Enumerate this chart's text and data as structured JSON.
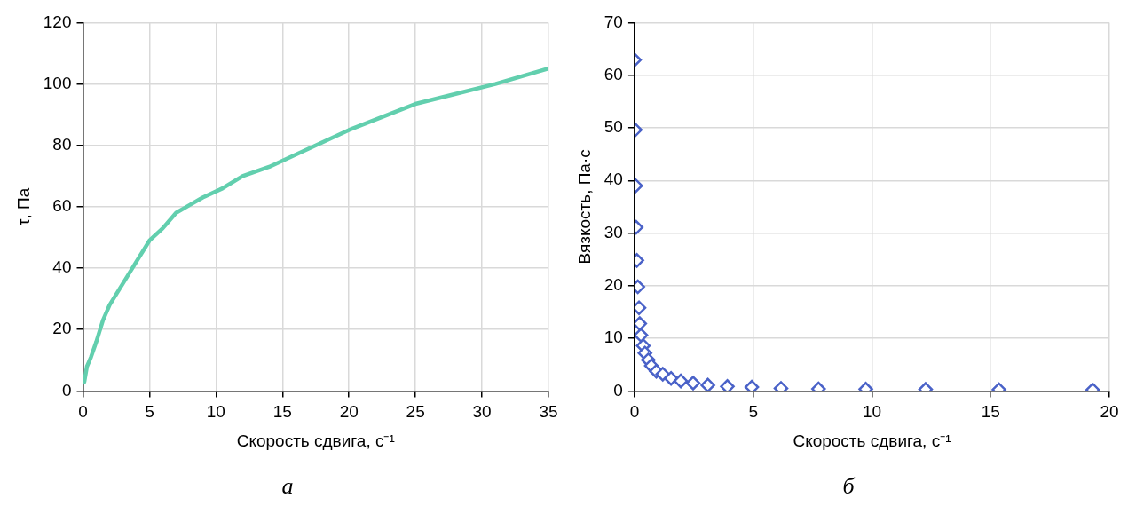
{
  "chart_data": [
    {
      "type": "line",
      "xlabel": "Скорость сдвига, с⁻¹",
      "ylabel": "τ, Па",
      "color": "#62cfae",
      "x": [
        0.1,
        0.3,
        0.6,
        1,
        1.5,
        2,
        3,
        4,
        5,
        6,
        7,
        8,
        9,
        10.5,
        12,
        14,
        17,
        20,
        25,
        31,
        35
      ],
      "values": [
        3,
        8,
        11,
        16,
        23,
        28,
        35,
        42,
        49,
        53,
        58,
        60.5,
        63,
        66,
        70,
        73,
        79,
        85,
        93.5,
        100,
        105
      ],
      "xlim": [
        0,
        35
      ],
      "xticks": [
        0,
        5,
        10,
        15,
        20,
        25,
        30,
        35
      ],
      "ylim": [
        0,
        120
      ],
      "yticks": [
        0,
        20,
        40,
        60,
        80,
        100,
        120
      ],
      "grid": true,
      "line_style": "solid",
      "marker": "none",
      "annotations": [
        "а"
      ]
    },
    {
      "type": "scatter",
      "xlabel": "Скорость сдвига, с⁻¹",
      "ylabel": "Вязкость, Па·с",
      "color": "#4a62c8",
      "x": [
        0.0,
        0.03,
        0.05,
        0.07,
        0.1,
        0.14,
        0.19,
        0.22,
        0.27,
        0.37,
        0.44,
        0.58,
        0.71,
        0.92,
        1.19,
        1.54,
        1.95,
        2.47,
        3.09,
        3.91,
        4.94,
        6.17,
        7.75,
        9.74,
        12.26,
        15.35,
        19.3
      ],
      "values": [
        62.9,
        49.6,
        39,
        31.1,
        24.8,
        19.8,
        15.8,
        12.8,
        10.6,
        8.6,
        7.2,
        5.9,
        4.8,
        3.75,
        3.2,
        2.4,
        1.9,
        1.5,
        1.1,
        0.85,
        0.74,
        0.5,
        0.4,
        0.35,
        0.3,
        0.25,
        0.2
      ],
      "xlim": [
        0,
        20
      ],
      "xticks": [
        0,
        5,
        10,
        15,
        20
      ],
      "ylim": [
        0,
        70
      ],
      "yticks": [
        0,
        10,
        20,
        30,
        40,
        50,
        60,
        70
      ],
      "grid": true,
      "marker": "diamond",
      "annotations": [
        "б"
      ]
    }
  ]
}
